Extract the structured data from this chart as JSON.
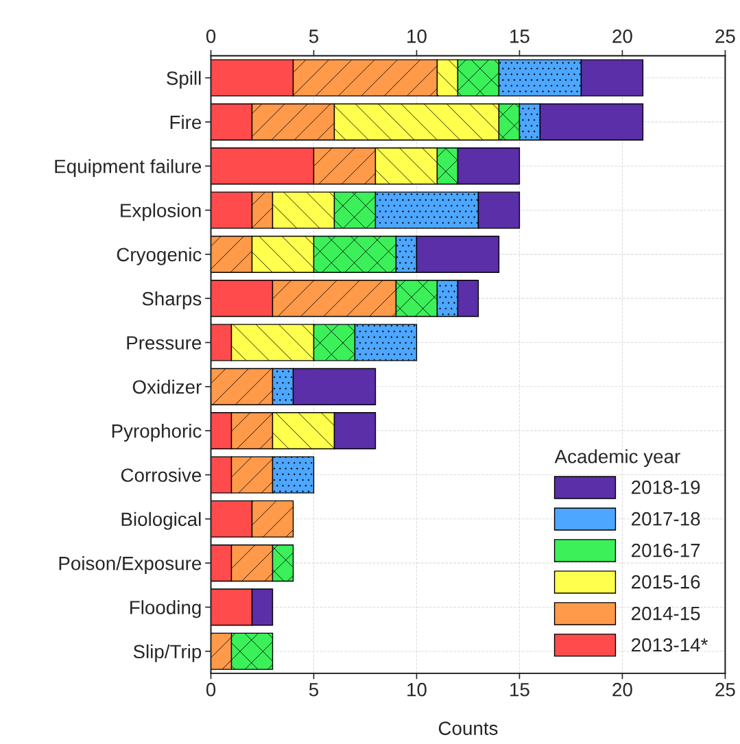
{
  "chart_data": {
    "type": "bar",
    "orientation": "horizontal",
    "stacked": true,
    "categories": [
      "Spill",
      "Fire",
      "Equipment failure",
      "Explosion",
      "Cryogenic",
      "Sharps",
      "Pressure",
      "Oxidizer",
      "Pyrophoric",
      "Corrosive",
      "Biological",
      "Poison/Exposure",
      "Flooding",
      "Slip/Trip"
    ],
    "series": [
      {
        "name": "2013-14*",
        "color": "#ff4b4b",
        "values": [
          4,
          2,
          5,
          2,
          0,
          3,
          1,
          0,
          1,
          1,
          2,
          1,
          2,
          0
        ]
      },
      {
        "name": "2014-15",
        "color": "#ff9a4a",
        "values": [
          7,
          4,
          3,
          1,
          2,
          6,
          0,
          3,
          2,
          2,
          2,
          2,
          0,
          1
        ]
      },
      {
        "name": "2015-16",
        "color": "#ffff4d",
        "values": [
          1,
          8,
          3,
          3,
          3,
          0,
          4,
          0,
          3,
          0,
          0,
          0,
          0,
          0
        ]
      },
      {
        "name": "2016-17",
        "color": "#3cf05a",
        "values": [
          2,
          1,
          1,
          2,
          4,
          2,
          2,
          0,
          0,
          0,
          0,
          1,
          0,
          2
        ]
      },
      {
        "name": "2017-18",
        "color": "#4da6ff",
        "values": [
          4,
          1,
          0,
          5,
          1,
          1,
          3,
          1,
          0,
          2,
          0,
          0,
          0,
          0
        ]
      },
      {
        "name": "2018-19",
        "color": "#5a2fa8",
        "values": [
          3,
          5,
          3,
          2,
          4,
          1,
          0,
          4,
          2,
          0,
          0,
          0,
          1,
          0
        ]
      }
    ],
    "xlabel": "Counts",
    "legend_title": "Academic year",
    "legend": "bottom right",
    "grid": true,
    "xlim": [
      0,
      25
    ],
    "xticks": [
      0,
      5,
      10,
      15,
      20,
      25
    ],
    "x2lim": [
      0,
      25
    ],
    "x2ticks": [
      0,
      5,
      10,
      15,
      20,
      25
    ]
  }
}
